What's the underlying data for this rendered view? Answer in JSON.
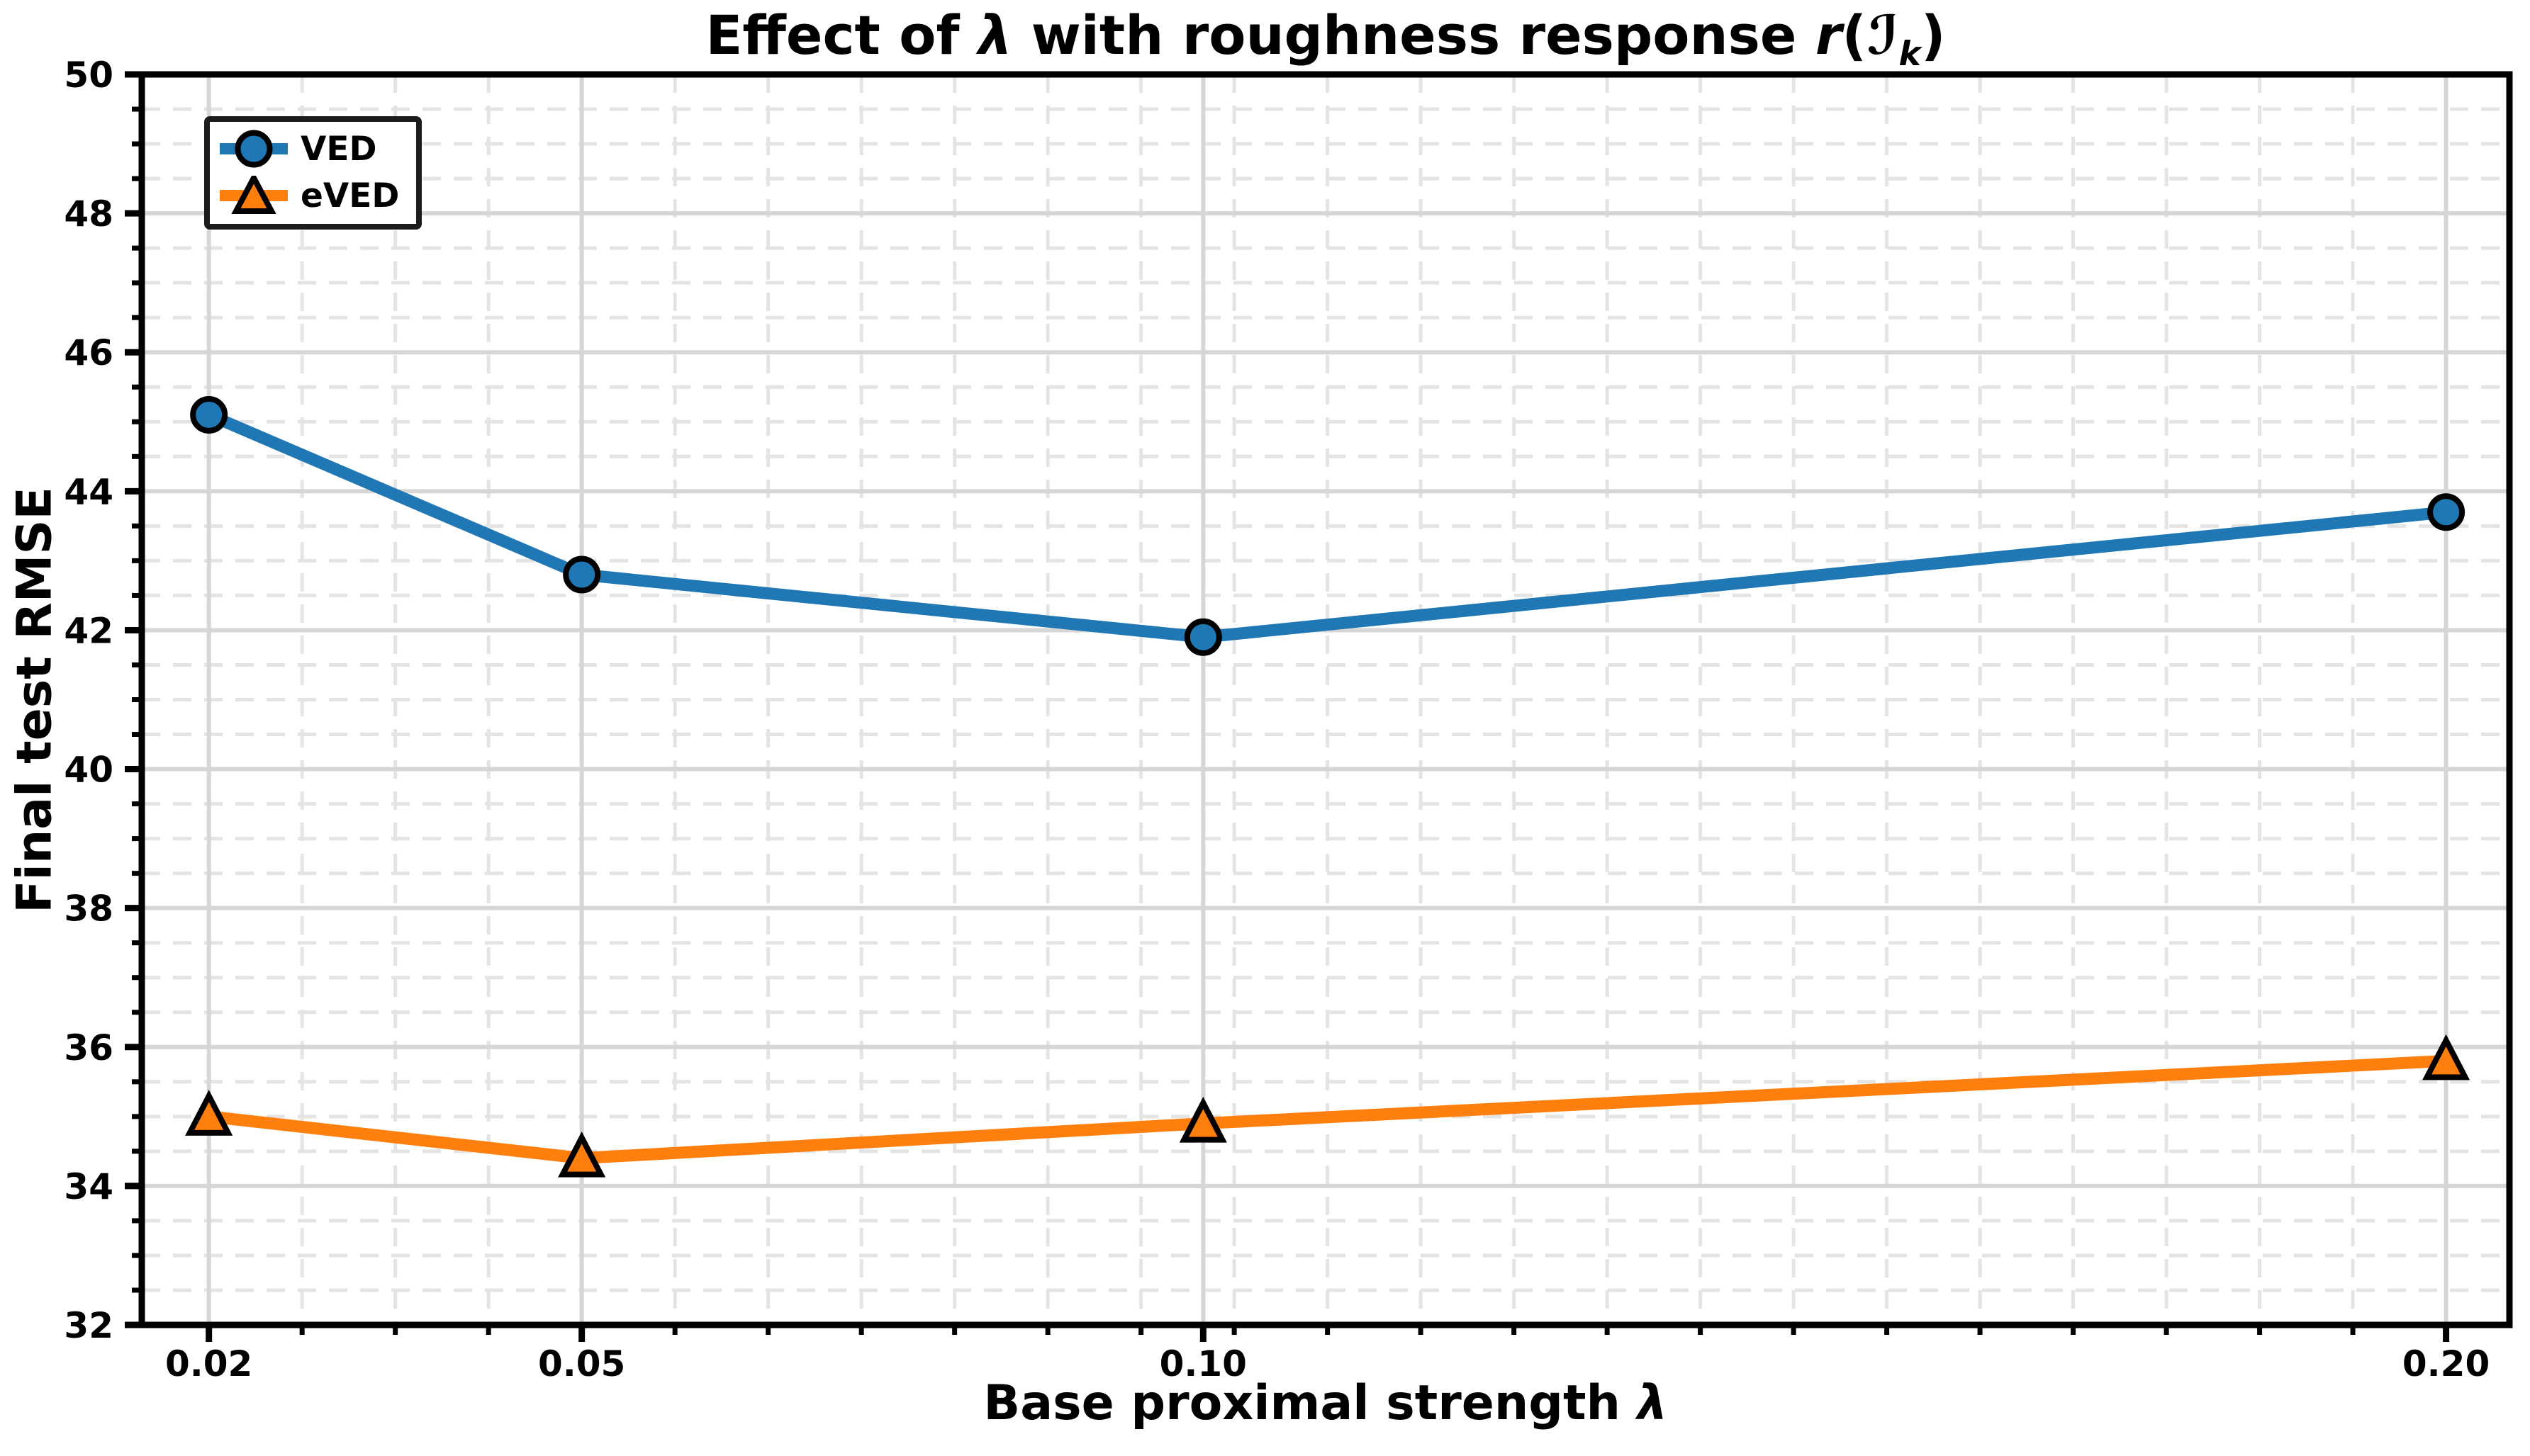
{
  "title_parts": {
    "prefix": "Effect of ",
    "lambda": "λ",
    "middle": " with roughness response ",
    "r_var": "r",
    "open_paren": "(",
    "script_I": "ℐ",
    "sub_k": "k",
    "close_paren": ")"
  },
  "xlabel_parts": {
    "prefix": "Base proximal strength ",
    "lambda": "λ"
  },
  "chart_data": {
    "type": "line",
    "title": "Effect of λ with roughness response r(ℐₖ)",
    "xlabel": "Base proximal strength λ",
    "ylabel": "Final test RMSE",
    "x": [
      0.02,
      0.05,
      0.1,
      0.2
    ],
    "xtick_labels": [
      "0.02",
      "0.05",
      "0.10",
      "0.20"
    ],
    "ytick_labels": [
      "32",
      "34",
      "36",
      "38",
      "40",
      "42",
      "44",
      "46",
      "48",
      "50"
    ],
    "yticks": [
      32,
      34,
      36,
      38,
      40,
      42,
      44,
      46,
      48,
      50
    ],
    "xlim": [
      0.0146,
      0.2051
    ],
    "ylim": [
      32,
      50
    ],
    "x_minor_step": 0.0075,
    "x_minor_anchor": 0.02,
    "y_minor_step": 0.5,
    "series": [
      {
        "name": "VED",
        "marker": "circle",
        "color": "#1f77b4",
        "values": [
          45.1,
          42.8,
          41.9,
          43.7
        ]
      },
      {
        "name": "eVED",
        "marker": "triangle",
        "color": "#ff7f0e",
        "values": [
          35.0,
          34.4,
          34.9,
          35.8
        ]
      }
    ],
    "marker_edge_color": "#000000",
    "axis_color": "#000000",
    "grid": {
      "major_style": "solid",
      "minor_style": "dashed"
    },
    "grid_major_color": "#d6d6d6",
    "grid_minor_color": "#e4e4e4",
    "legend_position": "upper-left",
    "background": "#ffffff"
  }
}
